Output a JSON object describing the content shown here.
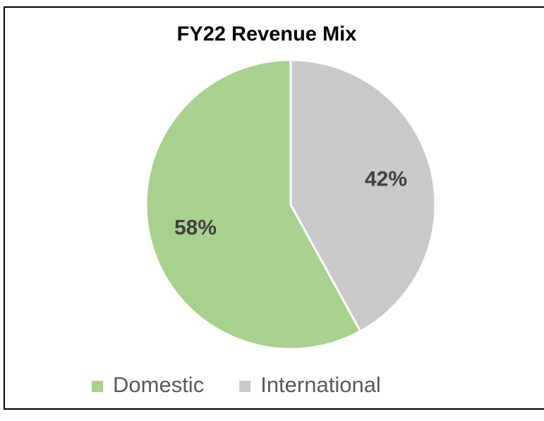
{
  "chart_data": {
    "type": "pie",
    "title": "FY22 Revenue Mix",
    "categories": [
      "Domestic",
      "International"
    ],
    "values": [
      58,
      42
    ],
    "value_labels": [
      "58%",
      "42%"
    ],
    "colors": [
      "#a9d18e",
      "#c9c9c9"
    ],
    "legend": "bottom"
  }
}
